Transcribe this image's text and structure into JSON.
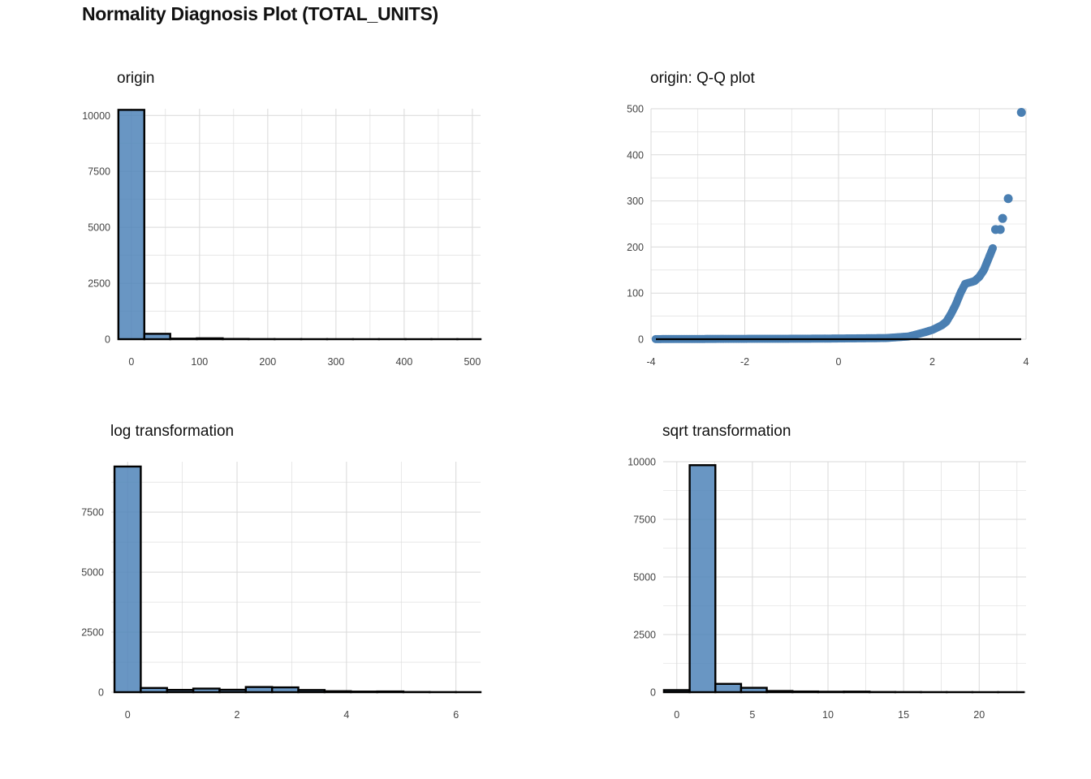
{
  "title": "Normality Diagnosis Plot (TOTAL_UNITS)",
  "colors": {
    "fill": "#4f84b8",
    "edge": "#000000",
    "grid": "#d9d9d9",
    "point": "#4a7fb2"
  },
  "chart_data": [
    {
      "id": "origin",
      "type": "bar",
      "title": "origin",
      "xlabel": "",
      "ylabel": "",
      "xlim": [
        -20,
        512
      ],
      "ylim": [
        0,
        10300
      ],
      "xticks": [
        0,
        100,
        200,
        300,
        400,
        500
      ],
      "yticks": [
        0,
        2500,
        5000,
        7500,
        10000
      ],
      "bins": [
        {
          "x0": -19,
          "x1": 19,
          "count": 10250
        },
        {
          "x0": 19,
          "x1": 57,
          "count": 240
        },
        {
          "x0": 57,
          "x1": 96,
          "count": 25
        },
        {
          "x0": 96,
          "x1": 134,
          "count": 40
        },
        {
          "x0": 134,
          "x1": 172,
          "count": 12
        },
        {
          "x0": 172,
          "x1": 210,
          "count": 5
        },
        {
          "x0": 210,
          "x1": 249,
          "count": 3
        },
        {
          "x0": 249,
          "x1": 287,
          "count": 2
        },
        {
          "x0": 287,
          "x1": 325,
          "count": 2
        },
        {
          "x0": 325,
          "x1": 363,
          "count": 1
        },
        {
          "x0": 363,
          "x1": 402,
          "count": 1
        },
        {
          "x0": 402,
          "x1": 440,
          "count": 1
        },
        {
          "x0": 440,
          "x1": 478,
          "count": 1
        },
        {
          "x0": 478,
          "x1": 512,
          "count": 1
        }
      ]
    },
    {
      "id": "qq",
      "type": "scatter",
      "title": "origin: Q-Q plot",
      "xlabel": "",
      "ylabel": "",
      "xlim": [
        -4,
        4
      ],
      "ylim": [
        0,
        500
      ],
      "xticks": [
        -4,
        -2,
        0,
        2,
        4
      ],
      "yticks": [
        0,
        100,
        200,
        300,
        400,
        500
      ],
      "reference_line": {
        "x": [
          -4,
          4
        ],
        "y": [
          0,
          0
        ]
      },
      "curve": [
        [
          -3.9,
          0.3
        ],
        [
          -1.0,
          1
        ],
        [
          0.0,
          1.5
        ],
        [
          1.0,
          2.5
        ],
        [
          1.5,
          6
        ],
        [
          1.8,
          14
        ],
        [
          2.0,
          20
        ],
        [
          2.2,
          30
        ],
        [
          2.3,
          38
        ],
        [
          2.4,
          55
        ],
        [
          2.5,
          75
        ],
        [
          2.6,
          100
        ],
        [
          2.7,
          120
        ],
        [
          2.8,
          123
        ],
        [
          2.9,
          126
        ],
        [
          3.0,
          135
        ],
        [
          3.1,
          150
        ],
        [
          3.2,
          175
        ],
        [
          3.3,
          200
        ]
      ],
      "outliers": [
        [
          3.35,
          238
        ],
        [
          3.45,
          238
        ],
        [
          3.5,
          262
        ],
        [
          3.62,
          305
        ],
        [
          3.9,
          492
        ]
      ]
    },
    {
      "id": "log",
      "type": "bar",
      "title": "log transformation",
      "xlabel": "",
      "ylabel": "",
      "xlim": [
        -0.3,
        6.45
      ],
      "ylim": [
        0,
        9600
      ],
      "xticks": [
        0,
        2,
        4,
        6
      ],
      "yticks": [
        0,
        2500,
        5000,
        7500
      ],
      "bins": [
        {
          "x0": -0.24,
          "x1": 0.24,
          "count": 9400
        },
        {
          "x0": 0.24,
          "x1": 0.72,
          "count": 175
        },
        {
          "x0": 0.72,
          "x1": 1.2,
          "count": 95
        },
        {
          "x0": 1.2,
          "x1": 1.68,
          "count": 150
        },
        {
          "x0": 1.68,
          "x1": 2.16,
          "count": 100
        },
        {
          "x0": 2.16,
          "x1": 2.64,
          "count": 215
        },
        {
          "x0": 2.64,
          "x1": 3.12,
          "count": 200
        },
        {
          "x0": 3.12,
          "x1": 3.6,
          "count": 90
        },
        {
          "x0": 3.6,
          "x1": 4.08,
          "count": 40
        },
        {
          "x0": 4.08,
          "x1": 4.56,
          "count": 25
        },
        {
          "x0": 4.56,
          "x1": 5.04,
          "count": 30
        },
        {
          "x0": 5.04,
          "x1": 5.52,
          "count": 8
        },
        {
          "x0": 5.52,
          "x1": 6.0,
          "count": 4
        },
        {
          "x0": 6.0,
          "x1": 6.45,
          "count": 2
        }
      ]
    },
    {
      "id": "sqrt",
      "type": "bar",
      "title": "sqrt transformation",
      "xlabel": "",
      "ylabel": "",
      "xlim": [
        -0.9,
        23.1
      ],
      "ylim": [
        0,
        10000
      ],
      "xticks": [
        0,
        5,
        10,
        15,
        20
      ],
      "yticks": [
        0,
        2500,
        5000,
        7500,
        10000
      ],
      "bins": [
        {
          "x0": -0.85,
          "x1": 0.85,
          "count": 90
        },
        {
          "x0": 0.85,
          "x1": 2.55,
          "count": 9850
        },
        {
          "x0": 2.55,
          "x1": 4.25,
          "count": 360
        },
        {
          "x0": 4.25,
          "x1": 5.95,
          "count": 190
        },
        {
          "x0": 5.95,
          "x1": 7.65,
          "count": 50
        },
        {
          "x0": 7.65,
          "x1": 9.35,
          "count": 30
        },
        {
          "x0": 9.35,
          "x1": 11.05,
          "count": 20
        },
        {
          "x0": 11.05,
          "x1": 12.75,
          "count": 25
        },
        {
          "x0": 12.75,
          "x1": 14.45,
          "count": 8
        },
        {
          "x0": 14.45,
          "x1": 16.15,
          "count": 5
        },
        {
          "x0": 16.15,
          "x1": 17.85,
          "count": 3
        },
        {
          "x0": 17.85,
          "x1": 19.55,
          "count": 2
        },
        {
          "x0": 19.55,
          "x1": 21.25,
          "count": 1
        },
        {
          "x0": 21.25,
          "x1": 22.95,
          "count": 1
        }
      ]
    }
  ]
}
